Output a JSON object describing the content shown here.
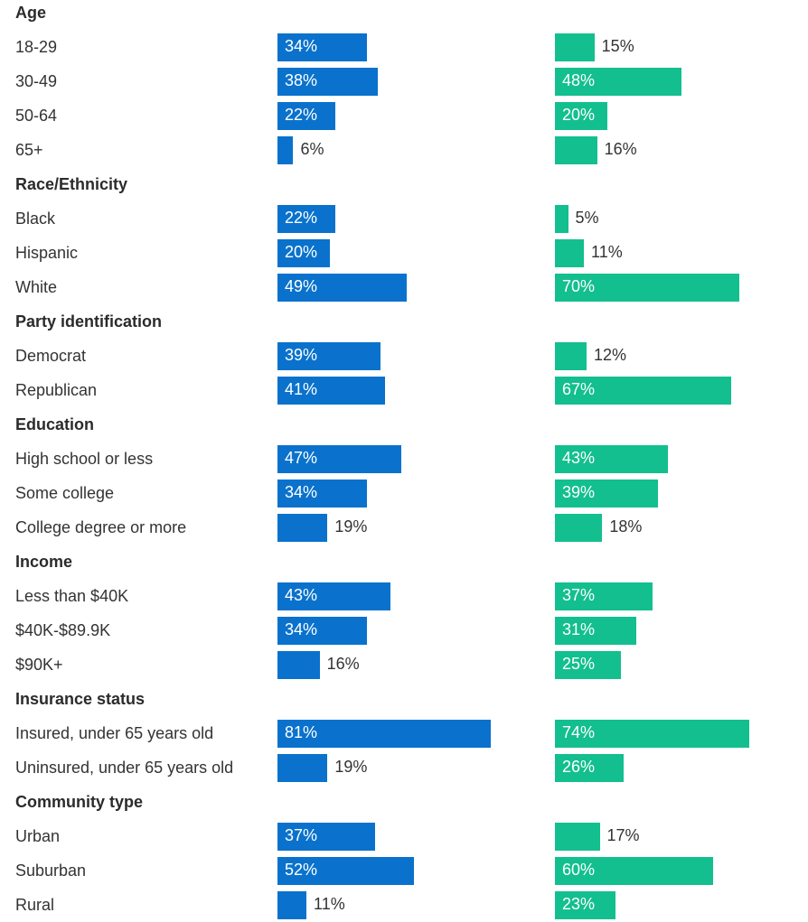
{
  "colors": {
    "series_a": "#0a72cc",
    "series_b": "#13bf8e"
  },
  "chart_data": {
    "type": "bar",
    "orientation": "horizontal",
    "value_unit": "%",
    "xlim": [
      0,
      100
    ],
    "grid": false,
    "legend": "none",
    "series": [
      {
        "color": "#0a72cc"
      },
      {
        "color": "#13bf8e"
      }
    ],
    "groups": [
      {
        "label": "Age",
        "rows": [
          {
            "label": "18-29",
            "values": [
              34,
              15
            ]
          },
          {
            "label": "30-49",
            "values": [
              38,
              48
            ]
          },
          {
            "label": "50-64",
            "values": [
              22,
              20
            ]
          },
          {
            "label": "65+",
            "values": [
              6,
              16
            ]
          }
        ]
      },
      {
        "label": "Race/Ethnicity",
        "rows": [
          {
            "label": "Black",
            "values": [
              22,
              5
            ]
          },
          {
            "label": "Hispanic",
            "values": [
              20,
              11
            ]
          },
          {
            "label": "White",
            "values": [
              49,
              70
            ]
          }
        ]
      },
      {
        "label": "Party identification",
        "rows": [
          {
            "label": "Democrat",
            "values": [
              39,
              12
            ]
          },
          {
            "label": "Republican",
            "values": [
              41,
              67
            ]
          }
        ]
      },
      {
        "label": "Education",
        "rows": [
          {
            "label": "High school or less",
            "values": [
              47,
              43
            ]
          },
          {
            "label": "Some college",
            "values": [
              34,
              39
            ]
          },
          {
            "label": "College degree or more",
            "values": [
              19,
              18
            ]
          }
        ]
      },
      {
        "label": "Income",
        "rows": [
          {
            "label": "Less than $40K",
            "values": [
              43,
              37
            ]
          },
          {
            "label": "$40K-$89.9K",
            "values": [
              34,
              31
            ]
          },
          {
            "label": "$90K+",
            "values": [
              16,
              25
            ]
          }
        ]
      },
      {
        "label": "Insurance status",
        "rows": [
          {
            "label": "Insured, under 65 years old",
            "values": [
              81,
              74
            ]
          },
          {
            "label": "Uninsured, under 65 years old",
            "values": [
              19,
              26
            ]
          }
        ]
      },
      {
        "label": "Community type",
        "rows": [
          {
            "label": "Urban",
            "values": [
              37,
              17
            ]
          },
          {
            "label": "Suburban",
            "values": [
              52,
              60
            ]
          },
          {
            "label": "Rural",
            "values": [
              11,
              23
            ]
          }
        ]
      }
    ]
  }
}
